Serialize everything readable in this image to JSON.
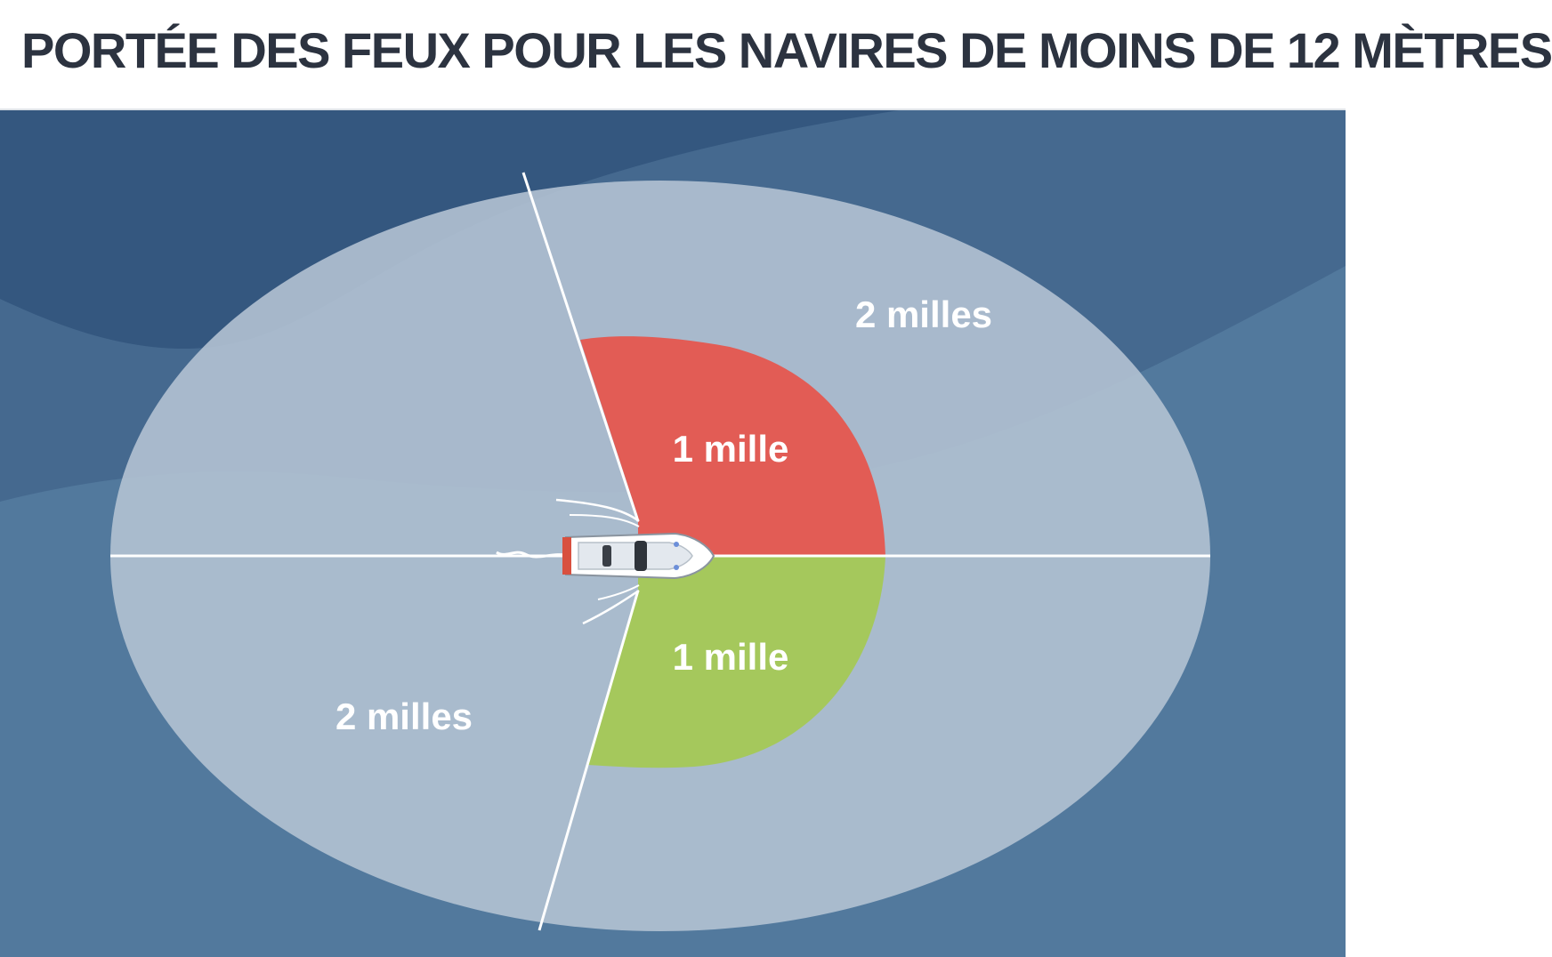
{
  "title": "PORTÉE DES FEUX POUR LES NAVIRES DE MOINS DE 12 MÈTRES",
  "labels": {
    "outer_top_right": "2 milles",
    "outer_bottom_left": "2 milles",
    "port_sector": "1 mille",
    "starboard_sector": "1 mille"
  },
  "colors": {
    "sea_dark": "#34577f",
    "sea": "#45698f",
    "sea_light": "#52799d",
    "outer_range": "#b3c2d3",
    "port_light": "#e25c55",
    "starboard_light": "#a5c85c",
    "sector_lines": "#ffffff",
    "title_text": "#2c3340"
  }
}
